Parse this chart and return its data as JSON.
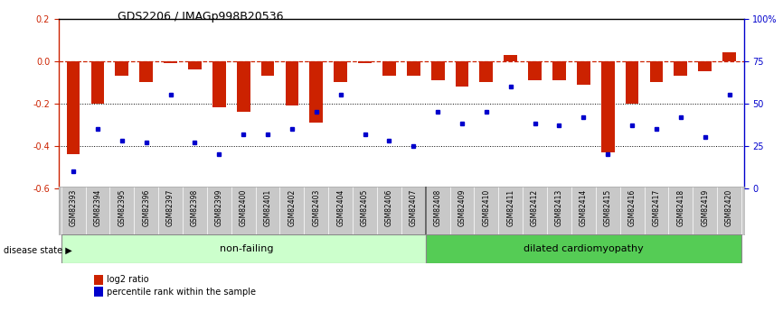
{
  "title": "GDS2206 / IMAGp998B20536",
  "samples": [
    "GSM82393",
    "GSM82394",
    "GSM82395",
    "GSM82396",
    "GSM82397",
    "GSM82398",
    "GSM82399",
    "GSM82400",
    "GSM82401",
    "GSM82402",
    "GSM82403",
    "GSM82404",
    "GSM82405",
    "GSM82406",
    "GSM82407",
    "GSM82408",
    "GSM82409",
    "GSM82410",
    "GSM82411",
    "GSM82412",
    "GSM82413",
    "GSM82414",
    "GSM82415",
    "GSM82416",
    "GSM82417",
    "GSM82418",
    "GSM82419",
    "GSM82420"
  ],
  "log2_ratio": [
    -0.44,
    -0.2,
    -0.07,
    -0.1,
    -0.01,
    -0.04,
    -0.22,
    -0.24,
    -0.07,
    -0.21,
    -0.29,
    -0.1,
    -0.01,
    -0.07,
    -0.07,
    -0.09,
    -0.12,
    -0.1,
    0.03,
    -0.09,
    -0.09,
    -0.11,
    -0.43,
    -0.2,
    -0.1,
    -0.07,
    -0.05,
    0.04
  ],
  "percentile": [
    10,
    35,
    28,
    27,
    55,
    27,
    20,
    32,
    32,
    35,
    45,
    55,
    32,
    28,
    25,
    45,
    38,
    45,
    60,
    38,
    37,
    42,
    20,
    37,
    35,
    42,
    30,
    55
  ],
  "nonfailing_count": 15,
  "dilated_count": 13,
  "ylim_left": [
    -0.6,
    0.2
  ],
  "ylim_right": [
    0,
    100
  ],
  "bar_color": "#cc2200",
  "dot_color": "#0000cc",
  "dashed_line_color": "#cc2200",
  "nonfailing_color": "#ccffcc",
  "dilated_color": "#55cc55",
  "label_bar": "log2 ratio",
  "label_dot": "percentile rank within the sample",
  "group_label_nonfailing": "non-failing",
  "group_label_dilated": "dilated cardiomyopathy",
  "disease_state_label": "disease state"
}
